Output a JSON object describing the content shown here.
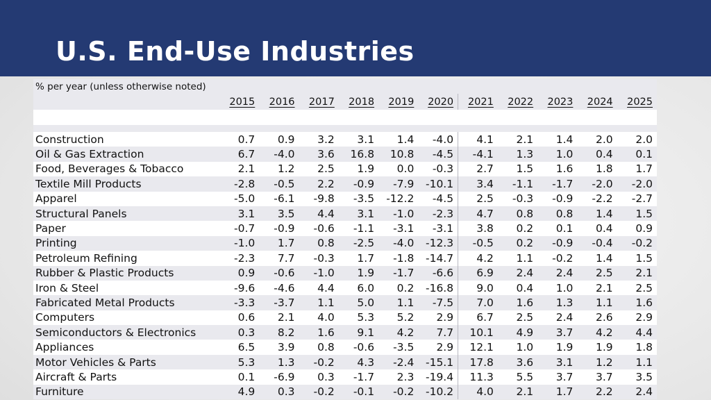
{
  "title": "U.S. End-Use Industries",
  "subtitle": "% per year (unless otherwise noted)",
  "years": [
    "2015",
    "2016",
    "2017",
    "2018",
    "2019",
    "2020",
    "2021",
    "2022",
    "2023",
    "2024",
    "2025"
  ],
  "rows": [
    {
      "label": "Construction",
      "values": [
        "0.7",
        "0.9",
        "3.2",
        "3.1",
        "1.4",
        "-4.0",
        "4.1",
        "2.1",
        "1.4",
        "2.0",
        "2.0"
      ]
    },
    {
      "label": "Oil & Gas Extraction",
      "values": [
        "6.7",
        "-4.0",
        "3.6",
        "16.8",
        "10.8",
        "-4.5",
        "-4.1",
        "1.3",
        "1.0",
        "0.4",
        "0.1"
      ]
    },
    {
      "label": "Food, Beverages & Tobacco",
      "values": [
        "2.1",
        "1.2",
        "2.5",
        "1.9",
        "0.0",
        "-0.3",
        "2.7",
        "1.5",
        "1.6",
        "1.8",
        "1.7"
      ]
    },
    {
      "label": "Textile Mill Products",
      "values": [
        "-2.8",
        "-0.5",
        "2.2",
        "-0.9",
        "-7.9",
        "-10.1",
        "3.4",
        "-1.1",
        "-1.7",
        "-2.0",
        "-2.0"
      ]
    },
    {
      "label": "Apparel",
      "values": [
        "-5.0",
        "-6.1",
        "-9.8",
        "-3.5",
        "-12.2",
        "-4.5",
        "2.5",
        "-0.3",
        "-0.9",
        "-2.2",
        "-2.7"
      ]
    },
    {
      "label": "Structural Panels",
      "values": [
        "3.1",
        "3.5",
        "4.4",
        "3.1",
        "-1.0",
        "-2.3",
        "4.7",
        "0.8",
        "0.8",
        "1.4",
        "1.5"
      ]
    },
    {
      "label": "Paper",
      "values": [
        "-0.7",
        "-0.9",
        "-0.6",
        "-1.1",
        "-3.1",
        "-3.1",
        "3.8",
        "0.2",
        "0.1",
        "0.4",
        "0.9"
      ]
    },
    {
      "label": "Printing",
      "values": [
        "-1.0",
        "1.7",
        "0.8",
        "-2.5",
        "-4.0",
        "-12.3",
        "-0.5",
        "0.2",
        "-0.9",
        "-0.4",
        "-0.2"
      ]
    },
    {
      "label": "Petroleum Refining",
      "values": [
        "-2.3",
        "7.7",
        "-0.3",
        "1.7",
        "-1.8",
        "-14.7",
        "4.2",
        "1.1",
        "-0.2",
        "1.4",
        "1.5"
      ]
    },
    {
      "label": "Rubber & Plastic Products",
      "values": [
        "0.9",
        "-0.6",
        "-1.0",
        "1.9",
        "-1.7",
        "-6.6",
        "6.9",
        "2.4",
        "2.4",
        "2.5",
        "2.1"
      ]
    },
    {
      "label": "Iron & Steel",
      "values": [
        "-9.6",
        "-4.6",
        "4.4",
        "6.0",
        "0.2",
        "-16.8",
        "9.0",
        "0.4",
        "1.0",
        "2.1",
        "2.5"
      ]
    },
    {
      "label": "Fabricated Metal Products",
      "values": [
        "-3.3",
        "-3.7",
        "1.1",
        "5.0",
        "1.1",
        "-7.5",
        "7.0",
        "1.6",
        "1.3",
        "1.1",
        "1.6"
      ]
    },
    {
      "label": "Computers",
      "values": [
        "0.6",
        "2.1",
        "4.0",
        "5.3",
        "5.2",
        "2.9",
        "6.7",
        "2.5",
        "2.4",
        "2.6",
        "2.9"
      ]
    },
    {
      "label": "Semiconductors & Electronics",
      "values": [
        "0.3",
        "8.2",
        "1.6",
        "9.1",
        "4.2",
        "7.7",
        "10.1",
        "4.9",
        "3.7",
        "4.2",
        "4.4"
      ]
    },
    {
      "label": "Appliances",
      "values": [
        "6.5",
        "3.9",
        "0.8",
        "-0.6",
        "-3.5",
        "2.9",
        "12.1",
        "1.0",
        "1.9",
        "1.9",
        "1.8"
      ]
    },
    {
      "label": "Motor Vehicles & Parts",
      "values": [
        "5.3",
        "1.3",
        "-0.2",
        "4.3",
        "-2.4",
        "-15.1",
        "17.8",
        "3.6",
        "3.1",
        "1.2",
        "1.1"
      ]
    },
    {
      "label": "Aircraft & Parts",
      "values": [
        "0.1",
        "-6.9",
        "0.3",
        "-1.7",
        "2.3",
        "-19.4",
        "11.3",
        "5.5",
        "3.7",
        "3.7",
        "3.5"
      ]
    },
    {
      "label": "Furniture",
      "values": [
        "4.9",
        "0.3",
        "-0.2",
        "-0.1",
        "-0.2",
        "-10.2",
        "4.0",
        "2.1",
        "1.7",
        "2.2",
        "2.4"
      ]
    }
  ]
}
